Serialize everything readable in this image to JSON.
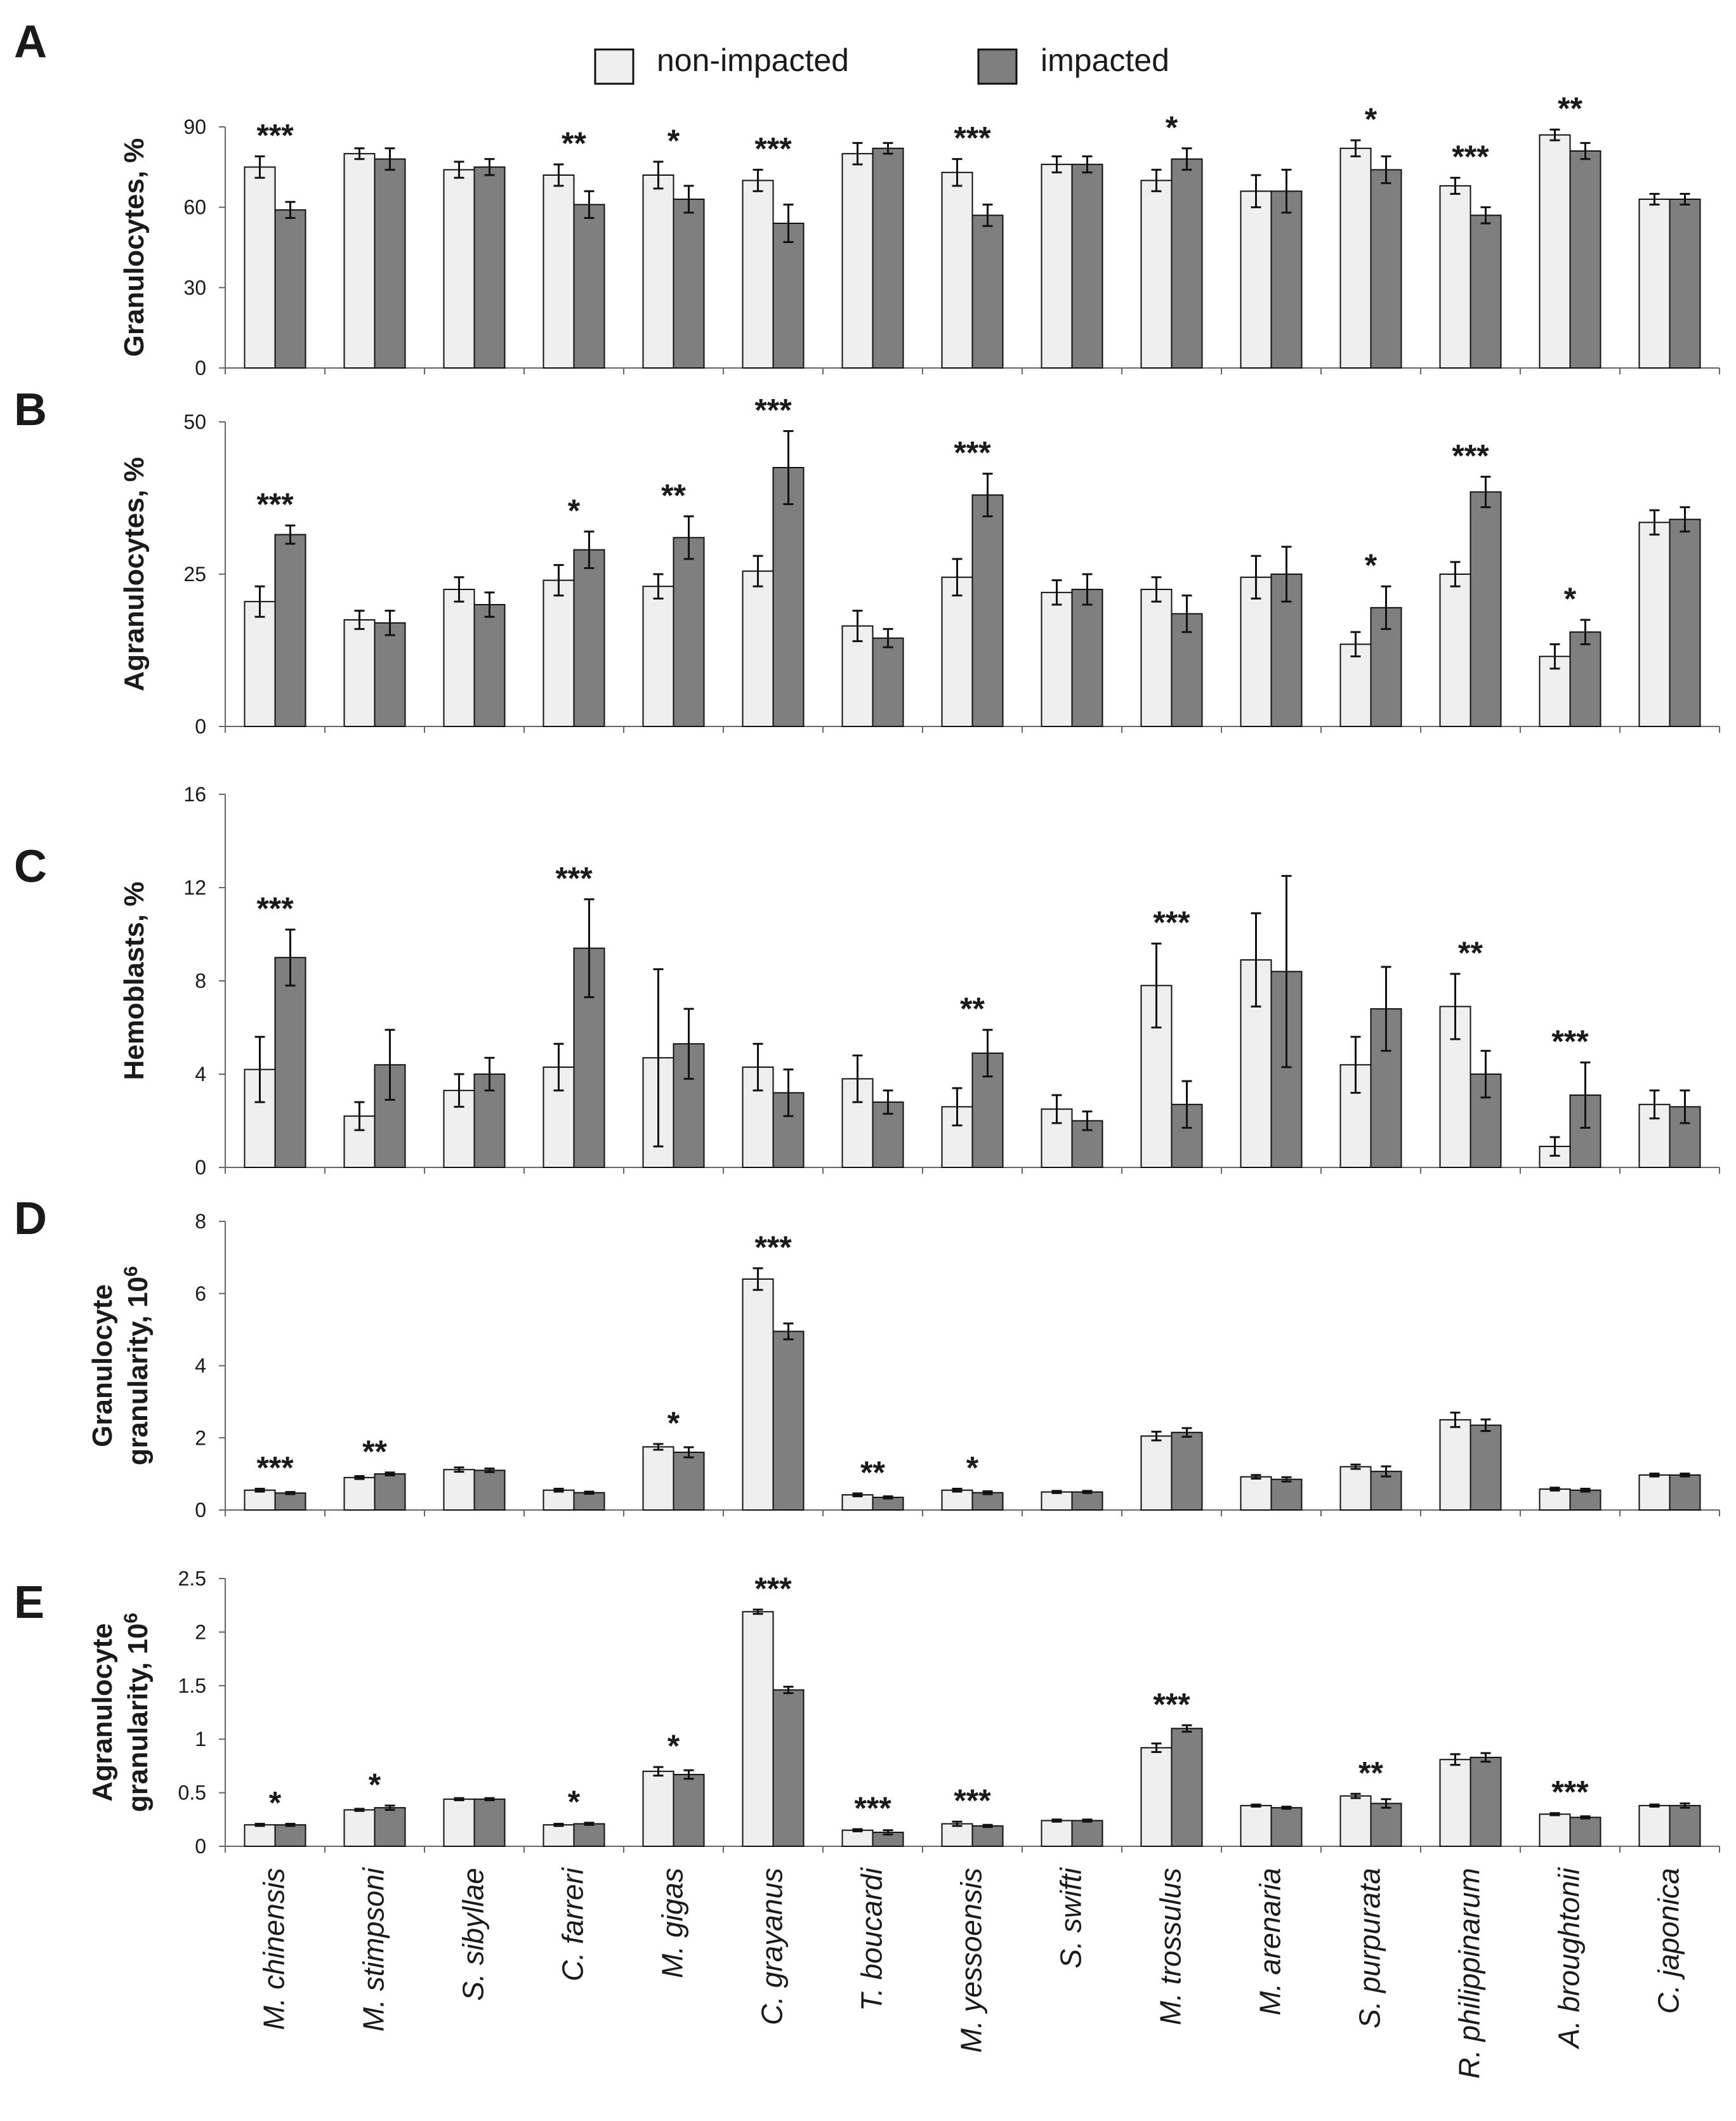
{
  "legend": {
    "items": [
      {
        "label": "non-impacted",
        "color": "#efefef"
      },
      {
        "label": "impacted",
        "color": "#7f7f7f"
      }
    ]
  },
  "species": [
    "M. chinensis",
    "M. stimpsoni",
    "S. sibyllae",
    "C. farreri",
    "M. gigas",
    "C. grayanus",
    "T. boucardi",
    "M. yessoensis",
    "S. swifti",
    "M. trossulus",
    "M. arenaria",
    "S. purpurata",
    "R. philippinarum",
    "A. broughtonii",
    "C. japonica"
  ],
  "chart_data": [
    {
      "type": "bar",
      "panel": "A",
      "ylabel": "Granulocytes, %",
      "ylim": [
        0,
        90
      ],
      "yticks": [
        "0",
        "30",
        "60",
        "90"
      ],
      "categories": [
        "M. chinensis",
        "M. stimpsoni",
        "S. sibyllae",
        "C. farreri",
        "M. gigas",
        "C. grayanus",
        "T. boucardi",
        "M. yessoensis",
        "S. swifti",
        "M. trossulus",
        "M. arenaria",
        "S. purpurata",
        "R. philippinarum",
        "A. broughtonii",
        "C. japonica"
      ],
      "series": [
        {
          "name": "non-impacted",
          "values": [
            75,
            80,
            74,
            72,
            72,
            70,
            80,
            73,
            76,
            70,
            66,
            82,
            68,
            87,
            63
          ],
          "errors": [
            4,
            2,
            3,
            4,
            5,
            4,
            4,
            5,
            3,
            4,
            6,
            3,
            3,
            2,
            2
          ]
        },
        {
          "name": "impacted",
          "values": [
            59,
            78,
            75,
            61,
            63,
            54,
            82,
            57,
            76,
            78,
            66,
            74,
            57,
            81,
            63
          ],
          "errors": [
            3,
            4,
            3,
            5,
            5,
            7,
            2,
            4,
            3,
            4,
            8,
            5,
            3,
            3,
            2
          ]
        }
      ],
      "significance": [
        "***",
        "",
        "",
        "**",
        "*",
        "***",
        "",
        "***",
        "",
        "*",
        "",
        "*",
        "***",
        "**",
        ""
      ]
    },
    {
      "type": "bar",
      "panel": "B",
      "ylabel": "Agranulocytes, %",
      "ylim": [
        0,
        50
      ],
      "yticks": [
        "0",
        "25",
        "50"
      ],
      "categories": [
        "M. chinensis",
        "M. stimpsoni",
        "S. sibyllae",
        "C. farreri",
        "M. gigas",
        "C. grayanus",
        "T. boucardi",
        "M. yessoensis",
        "S. swifti",
        "M. trossulus",
        "M. arenaria",
        "S. purpurata",
        "R. philippinarum",
        "A. broughtonii",
        "C. japonica"
      ],
      "series": [
        {
          "name": "non-impacted",
          "values": [
            20.5,
            17.5,
            22.5,
            24,
            23,
            25.5,
            16.5,
            24.5,
            22,
            22.5,
            24.5,
            13.5,
            25,
            11.5,
            33.5
          ],
          "errors": [
            2.5,
            1.5,
            2,
            2.5,
            2,
            2.5,
            2.5,
            3,
            2,
            2,
            3.5,
            2,
            2,
            2,
            2
          ]
        },
        {
          "name": "impacted",
          "values": [
            31.5,
            17,
            20,
            29,
            31,
            42.5,
            14.5,
            38,
            22.5,
            18.5,
            25,
            19.5,
            38.5,
            15.5,
            34
          ],
          "errors": [
            1.5,
            2,
            2,
            3,
            3.5,
            6,
            1.5,
            3.5,
            2.5,
            3,
            4.5,
            3.5,
            2.5,
            2,
            2
          ]
        }
      ],
      "significance": [
        "***",
        "",
        "",
        "*",
        "**",
        "***",
        "",
        "***",
        "",
        "",
        "",
        "*",
        "***",
        "*",
        ""
      ]
    },
    {
      "type": "bar",
      "panel": "C",
      "ylabel": "Hemoblasts, %",
      "ylim": [
        0,
        16
      ],
      "yticks": [
        "0",
        "4",
        "8",
        "12",
        "16"
      ],
      "categories": [
        "M. chinensis",
        "M. stimpsoni",
        "S. sibyllae",
        "C. farreri",
        "M. gigas",
        "C. grayanus",
        "T. boucardi",
        "M. yessoensis",
        "S. swifti",
        "M. trossulus",
        "M. arenaria",
        "S. purpurata",
        "R. philippinarum",
        "A. broughtonii",
        "C. japonica"
      ],
      "series": [
        {
          "name": "non-impacted",
          "values": [
            4.2,
            2.2,
            3.3,
            4.3,
            4.7,
            4.3,
            3.8,
            2.6,
            2.5,
            7.8,
            8.9,
            4.4,
            6.9,
            0.9,
            2.7
          ],
          "errors": [
            1.4,
            0.6,
            0.7,
            1,
            3.8,
            1,
            1,
            0.8,
            0.6,
            1.8,
            2,
            1.2,
            1.4,
            0.4,
            0.6
          ]
        },
        {
          "name": "impacted",
          "values": [
            9,
            4.4,
            4,
            9.4,
            5.3,
            3.2,
            2.8,
            4.9,
            2,
            2.7,
            8.4,
            6.8,
            4,
            3.1,
            2.6
          ],
          "errors": [
            1.2,
            1.5,
            0.7,
            2.1,
            1.5,
            1,
            0.5,
            1,
            0.4,
            1,
            4.1,
            1.8,
            1,
            1.4,
            0.7
          ]
        }
      ],
      "significance": [
        "***",
        "",
        "",
        "***",
        "",
        "",
        "",
        "**",
        "",
        "***",
        "",
        "",
        "**",
        "***",
        ""
      ]
    },
    {
      "type": "bar",
      "panel": "D",
      "ylabel_line1": "Granulocyte",
      "ylabel_line2": "granularity, 10",
      "ylabel_sup": "6",
      "ylim": [
        0,
        8
      ],
      "yticks": [
        "0",
        "2",
        "4",
        "6",
        "8"
      ],
      "categories": [
        "M. chinensis",
        "M. stimpsoni",
        "S. sibyllae",
        "C. farreri",
        "M. gigas",
        "C. grayanus",
        "T. boucardi",
        "M. yessoensis",
        "S. swifti",
        "M. trossulus",
        "M. arenaria",
        "S. purpurata",
        "R. philippinarum",
        "A. broughtonii",
        "C. japonica"
      ],
      "series": [
        {
          "name": "non-impacted",
          "values": [
            0.55,
            0.9,
            1.12,
            0.55,
            1.75,
            6.4,
            0.42,
            0.55,
            0.5,
            2.05,
            0.92,
            1.2,
            2.5,
            0.58,
            0.97
          ],
          "errors": [
            0.04,
            0.04,
            0.06,
            0.04,
            0.08,
            0.3,
            0.04,
            0.04,
            0.03,
            0.12,
            0.05,
            0.06,
            0.2,
            0.04,
            0.04
          ]
        },
        {
          "name": "impacted",
          "values": [
            0.47,
            1.0,
            1.1,
            0.48,
            1.6,
            4.95,
            0.35,
            0.48,
            0.5,
            2.15,
            0.85,
            1.07,
            2.35,
            0.55,
            0.97
          ],
          "errors": [
            0.03,
            0.04,
            0.05,
            0.03,
            0.14,
            0.22,
            0.03,
            0.04,
            0.03,
            0.12,
            0.06,
            0.14,
            0.16,
            0.04,
            0.04
          ]
        }
      ],
      "significance": [
        "***",
        "**",
        "",
        "",
        "*",
        "***",
        "**",
        "*",
        "",
        "",
        "",
        "",
        "",
        "",
        ""
      ]
    },
    {
      "type": "bar",
      "panel": "E",
      "ylabel_line1": "Agranulocyte",
      "ylabel_line2": "granularity, 10",
      "ylabel_sup": "6",
      "ylim": [
        0,
        2.5
      ],
      "yticks": [
        "0",
        "0.5",
        "1",
        "1.5",
        "2",
        "2.5"
      ],
      "categories": [
        "M. chinensis",
        "M. stimpsoni",
        "S. sibyllae",
        "C. farreri",
        "M. gigas",
        "C. grayanus",
        "T. boucardi",
        "M. yessoensis",
        "S. swifti",
        "M. trossulus",
        "M. arenaria",
        "S. purpurata",
        "R. philippinarum",
        "A. broughtonii",
        "C. japonica"
      ],
      "series": [
        {
          "name": "non-impacted",
          "values": [
            0.2,
            0.34,
            0.44,
            0.2,
            0.7,
            2.19,
            0.15,
            0.21,
            0.24,
            0.92,
            0.38,
            0.47,
            0.81,
            0.3,
            0.38
          ],
          "errors": [
            0.01,
            0.01,
            0.01,
            0.01,
            0.04,
            0.02,
            0.01,
            0.02,
            0.01,
            0.04,
            0.01,
            0.02,
            0.05,
            0.01,
            0.01
          ]
        },
        {
          "name": "impacted",
          "values": [
            0.2,
            0.36,
            0.44,
            0.21,
            0.67,
            1.46,
            0.13,
            0.19,
            0.24,
            1.1,
            0.36,
            0.4,
            0.83,
            0.27,
            0.38
          ],
          "errors": [
            0.01,
            0.02,
            0.01,
            0.01,
            0.04,
            0.03,
            0.02,
            0.01,
            0.01,
            0.03,
            0.01,
            0.04,
            0.04,
            0.01,
            0.02
          ]
        }
      ],
      "significance": [
        "*",
        "*",
        "",
        "*",
        "*",
        "***",
        "***",
        "***",
        "",
        "***",
        "",
        "**",
        "",
        "***",
        ""
      ]
    }
  ]
}
